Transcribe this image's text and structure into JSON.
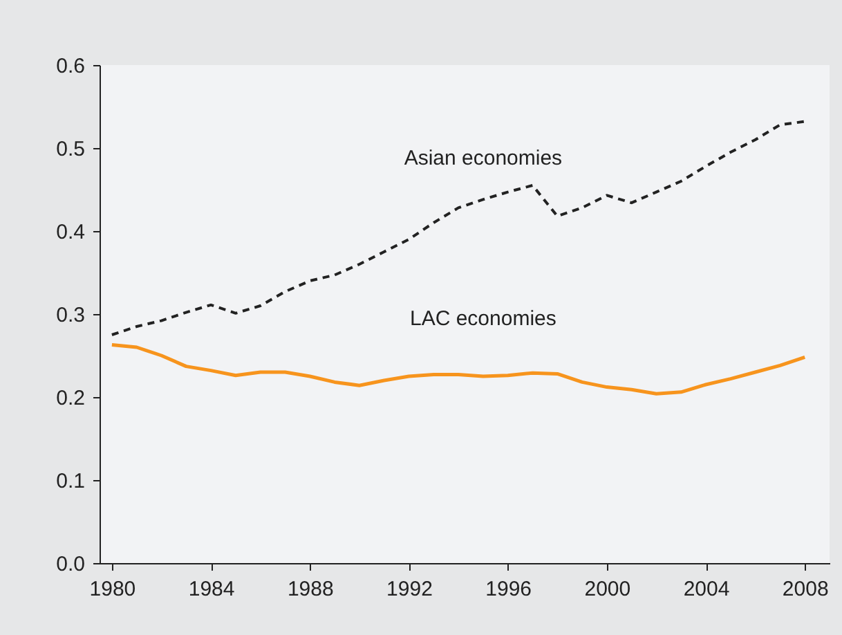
{
  "chart_data": {
    "type": "line",
    "x": [
      1980,
      1981,
      1982,
      1983,
      1984,
      1985,
      1986,
      1987,
      1988,
      1989,
      1990,
      1991,
      1992,
      1993,
      1994,
      1995,
      1996,
      1997,
      1998,
      1999,
      2000,
      2001,
      2002,
      2003,
      2004,
      2005,
      2006,
      2007,
      2008
    ],
    "series": [
      {
        "name": "Asian economies",
        "color": "#222222",
        "line_style": "dashed",
        "values": [
          0.275,
          0.285,
          0.292,
          0.302,
          0.311,
          0.301,
          0.31,
          0.327,
          0.34,
          0.347,
          0.36,
          0.375,
          0.39,
          0.41,
          0.428,
          0.438,
          0.447,
          0.455,
          0.418,
          0.428,
          0.443,
          0.434,
          0.447,
          0.46,
          0.478,
          0.495,
          0.51,
          0.528,
          0.532
        ]
      },
      {
        "name": "LAC economies",
        "color": "#f7941d",
        "line_style": "solid",
        "values": [
          0.263,
          0.26,
          0.25,
          0.237,
          0.232,
          0.226,
          0.23,
          0.23,
          0.225,
          0.218,
          0.214,
          0.22,
          0.225,
          0.227,
          0.227,
          0.225,
          0.226,
          0.229,
          0.228,
          0.218,
          0.212,
          0.209,
          0.204,
          0.206,
          0.215,
          0.222,
          0.23,
          0.238,
          0.248
        ]
      }
    ],
    "xlim": [
      1979.5,
      2009
    ],
    "xticks": [
      1980,
      1984,
      1988,
      1992,
      1996,
      2000,
      2004,
      2008
    ],
    "ylim": [
      0,
      0.6
    ],
    "yticks": [
      {
        "value": 0,
        "label": "0.0"
      },
      0.1,
      0.2,
      0.3,
      0.4,
      0.5,
      0.6
    ],
    "grid": false
  }
}
